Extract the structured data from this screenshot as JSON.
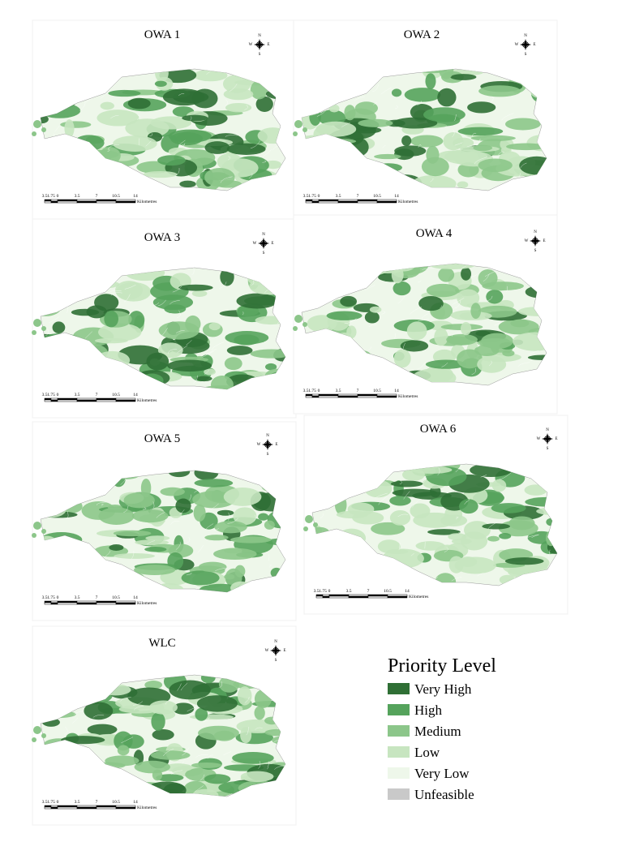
{
  "panels": [
    {
      "title": "OWA 1",
      "compass": [
        "N",
        "E",
        "S",
        "W"
      ],
      "scale_labels": [
        "3.5",
        "1.75",
        "0",
        "3.5",
        "7",
        "10.5",
        "14"
      ],
      "scale_unit": "Kilometres"
    },
    {
      "title": "OWA 2",
      "compass": [
        "N",
        "E",
        "S",
        "W"
      ],
      "scale_labels": [
        "3.5",
        "1.75",
        "0",
        "3.5",
        "7",
        "10.5",
        "14"
      ],
      "scale_unit": "Kilometres"
    },
    {
      "title": "OWA 3",
      "compass": [
        "N",
        "E",
        "S",
        "W"
      ],
      "scale_labels": [
        "3.5",
        "1.75",
        "0",
        "3.5",
        "7",
        "10.5",
        "14"
      ],
      "scale_unit": "Kilometres"
    },
    {
      "title": "OWA 4",
      "compass": [
        "N",
        "E",
        "S",
        "W"
      ],
      "scale_labels": [
        "3.5",
        "1.75",
        "0",
        "3.5",
        "7",
        "10.5",
        "14"
      ],
      "scale_unit": "Kilometres"
    },
    {
      "title": "OWA 5",
      "compass": [
        "N",
        "E",
        "S",
        "W"
      ],
      "scale_labels": [
        "3.5",
        "1.75",
        "0",
        "3.5",
        "7",
        "10.5",
        "14"
      ],
      "scale_unit": "Kilometres"
    },
    {
      "title": "OWA 6",
      "compass": [
        "N",
        "E",
        "S",
        "W"
      ],
      "scale_labels": [
        "3.5",
        "1.75",
        "0",
        "3.5",
        "7",
        "10.5",
        "14"
      ],
      "scale_unit": "Kilometres"
    },
    {
      "title": "WLC",
      "compass": [
        "N",
        "E",
        "S",
        "W"
      ],
      "scale_labels": [
        "3.5",
        "1.75",
        "0",
        "3.5",
        "7",
        "10.5",
        "14"
      ],
      "scale_unit": "Kilometres"
    }
  ],
  "legend": {
    "title": "Priority Level",
    "items": [
      {
        "label": "Very High",
        "color": "#2f6f35"
      },
      {
        "label": "High",
        "color": "#55a35c"
      },
      {
        "label": "Medium",
        "color": "#8cc68a"
      },
      {
        "label": "Low",
        "color": "#c7e5c0"
      },
      {
        "label": "Very Low",
        "color": "#eef7ea"
      },
      {
        "label": "Unfeasible",
        "color": "#c9c9c9"
      }
    ]
  }
}
